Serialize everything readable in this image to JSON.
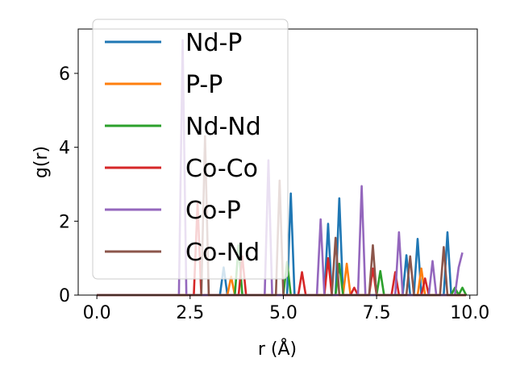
{
  "chart_data": {
    "type": "line",
    "title": "",
    "xlabel": "r (Å)",
    "ylabel": "g(r)",
    "xlim": [
      -0.5,
      10.2
    ],
    "ylim": [
      0,
      7.2
    ],
    "xticks": [
      0.0,
      2.5,
      5.0,
      7.5,
      10.0
    ],
    "xtick_labels": [
      "0.0",
      "2.5",
      "5.0",
      "7.5",
      "10.0"
    ],
    "yticks": [
      0,
      2,
      4,
      6
    ],
    "ytick_labels": [
      "0",
      "2",
      "4",
      "6"
    ],
    "grid": false,
    "legend_position": "top-left",
    "series": [
      {
        "name": "Nd-P",
        "color": "#1f77b4",
        "x": [
          0.0,
          3.3,
          3.4,
          3.5,
          5.1,
          5.2,
          5.3,
          6.1,
          6.2,
          6.3,
          6.4,
          6.5,
          6.6,
          8.2,
          8.3,
          8.4,
          8.5,
          8.6,
          8.7,
          9.3,
          9.4,
          9.5,
          9.9
        ],
        "y": [
          0.0,
          0.0,
          0.75,
          0.0,
          0.0,
          2.75,
          0.0,
          0.0,
          1.93,
          0.0,
          0.0,
          2.62,
          0.0,
          0.0,
          1.08,
          0.0,
          0.0,
          1.52,
          0.0,
          0.0,
          1.7,
          0.0,
          0.0
        ]
      },
      {
        "name": "P-P",
        "color": "#ff7f0e",
        "x": [
          0.0,
          3.5,
          3.6,
          3.7,
          6.6,
          6.7,
          6.8,
          8.6,
          8.7,
          8.8,
          9.9
        ],
        "y": [
          0.0,
          0.0,
          0.5,
          0.0,
          0.0,
          0.85,
          0.0,
          0.0,
          0.72,
          0.0,
          0.0
        ]
      },
      {
        "name": "Nd-Nd",
        "color": "#2ca02c",
        "x": [
          0.0,
          3.7,
          3.8,
          3.9,
          5.0,
          5.1,
          5.2,
          6.4,
          6.5,
          6.6,
          7.5,
          7.6,
          7.7,
          9.5,
          9.6,
          9.7,
          9.8,
          9.9
        ],
        "y": [
          0.0,
          0.0,
          1.35,
          0.0,
          0.0,
          0.9,
          0.0,
          0.0,
          0.85,
          0.0,
          0.0,
          0.65,
          0.0,
          0.0,
          0.2,
          0.0,
          0.2,
          0.0
        ]
      },
      {
        "name": "Co-Co",
        "color": "#d62728",
        "x": [
          0.0,
          2.6,
          2.7,
          2.8,
          3.8,
          3.9,
          4.0,
          5.4,
          5.5,
          5.6,
          6.1,
          6.2,
          6.3,
          6.8,
          6.9,
          7.0,
          7.3,
          7.4,
          7.5,
          7.9,
          8.0,
          8.1,
          8.7,
          8.8,
          8.9,
          9.9
        ],
        "y": [
          0.0,
          0.0,
          2.5,
          0.0,
          0.0,
          1.05,
          0.0,
          0.0,
          0.62,
          0.0,
          0.0,
          1.0,
          0.0,
          0.0,
          0.2,
          0.0,
          0.0,
          0.72,
          0.0,
          0.0,
          0.62,
          0.0,
          0.0,
          0.45,
          0.0,
          0.0
        ]
      },
      {
        "name": "Co-P",
        "color": "#9467bd",
        "x": [
          0.0,
          2.2,
          2.3,
          2.4,
          4.5,
          4.6,
          4.7,
          5.9,
          6.0,
          6.1,
          7.0,
          7.1,
          7.2,
          8.0,
          8.1,
          8.2,
          8.9,
          9.0,
          9.1,
          9.6,
          9.7,
          9.8
        ],
        "y": [
          0.0,
          0.0,
          6.9,
          0.0,
          0.0,
          3.65,
          0.0,
          0.0,
          2.05,
          0.0,
          0.0,
          2.95,
          0.0,
          0.0,
          1.7,
          0.0,
          0.0,
          0.92,
          0.0,
          0.0,
          0.75,
          1.15
        ]
      },
      {
        "name": "Co-Nd",
        "color": "#8c564b",
        "x": [
          0.0,
          2.8,
          2.9,
          3.0,
          4.8,
          4.9,
          5.0,
          6.3,
          6.4,
          6.5,
          7.3,
          7.4,
          7.5,
          8.3,
          8.4,
          8.5,
          9.2,
          9.3,
          9.4,
          9.9
        ],
        "y": [
          0.0,
          0.0,
          4.3,
          0.0,
          0.0,
          3.1,
          0.0,
          0.0,
          1.55,
          0.0,
          0.0,
          1.35,
          0.0,
          0.0,
          1.05,
          0.0,
          0.0,
          1.3,
          0.0,
          0.0
        ]
      }
    ]
  }
}
